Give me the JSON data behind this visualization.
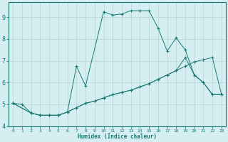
{
  "background_color": "#d4eef2",
  "grid_color": "#b8d4d8",
  "line_color": "#1a7a6e",
  "xlabel": "Humidex (Indice chaleur)",
  "xlim": [
    -0.5,
    23.5
  ],
  "ylim": [
    4.0,
    9.7
  ],
  "yticks": [
    4,
    5,
    6,
    7,
    8,
    9
  ],
  "xticks": [
    0,
    1,
    2,
    3,
    4,
    5,
    6,
    7,
    8,
    9,
    10,
    11,
    12,
    13,
    14,
    15,
    16,
    17,
    18,
    19,
    20,
    21,
    22,
    23
  ],
  "line1_x": [
    0,
    1,
    2,
    3,
    4,
    5,
    6,
    7,
    8,
    9,
    10,
    11,
    12,
    13,
    14,
    15,
    16,
    17,
    18,
    19,
    20,
    21,
    22,
    23
  ],
  "line1_y": [
    5.05,
    5.0,
    4.6,
    4.5,
    4.5,
    4.5,
    4.65,
    4.85,
    5.05,
    5.15,
    5.3,
    5.45,
    5.55,
    5.65,
    5.8,
    5.95,
    6.15,
    6.35,
    6.55,
    6.75,
    6.95,
    7.05,
    7.15,
    5.45
  ],
  "line2_x": [
    0,
    2,
    3,
    4,
    5,
    6,
    7,
    8,
    10,
    11,
    12,
    13,
    14,
    15,
    16,
    17,
    18,
    19,
    20,
    21,
    22,
    23
  ],
  "line2_y": [
    5.05,
    4.6,
    4.5,
    4.5,
    4.5,
    4.65,
    6.75,
    5.85,
    9.25,
    9.1,
    9.15,
    9.3,
    9.3,
    9.3,
    8.5,
    7.45,
    8.05,
    7.5,
    6.35,
    6.0,
    5.45,
    5.45
  ],
  "line3_x": [
    0,
    2,
    3,
    4,
    5,
    6,
    7,
    8,
    9,
    10,
    11,
    12,
    13,
    14,
    15,
    16,
    17,
    18,
    19,
    20,
    21,
    22,
    23
  ],
  "line3_y": [
    5.05,
    4.6,
    4.5,
    4.5,
    4.5,
    4.65,
    4.85,
    5.05,
    5.15,
    5.3,
    5.45,
    5.55,
    5.65,
    5.8,
    5.95,
    6.15,
    6.35,
    6.55,
    7.15,
    6.35,
    6.0,
    5.45,
    5.45
  ]
}
